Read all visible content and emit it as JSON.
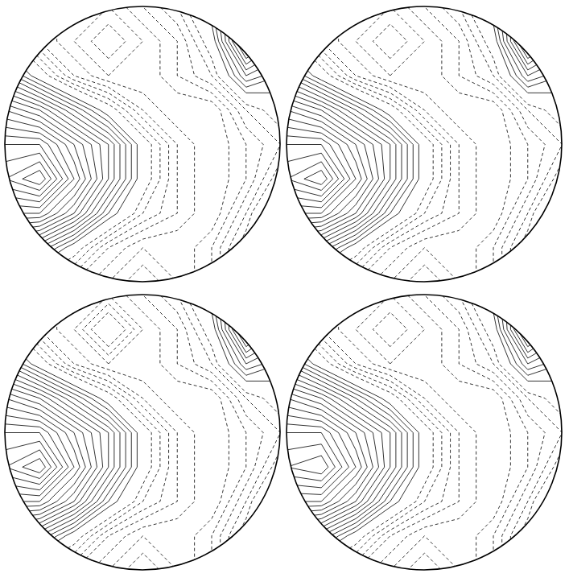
{
  "chart_data": [
    {
      "type": "contour",
      "tick_labels": false,
      "xlim": [
        -1,
        1
      ],
      "ylim": [
        -1,
        1
      ],
      "x": [
        -1,
        -0.75,
        -0.5,
        -0.25,
        0,
        0.25,
        0.5,
        0.75,
        1
      ],
      "y": [
        1,
        0.75,
        0.5,
        0.25,
        0,
        -0.25,
        -0.5,
        -0.75,
        -1
      ],
      "thresholds": [
        -4,
        -3.5,
        -3,
        -2.5,
        -2,
        -1.5,
        -1,
        -0.5,
        0.5,
        1,
        1.5,
        2,
        2.5,
        3,
        3.5,
        4,
        4.5,
        5,
        5.5,
        6,
        6.5,
        7,
        7.5,
        8,
        8.5
      ],
      "values": [
        [
          -1,
          -2,
          -3,
          -3,
          -2,
          -1,
          1,
          4,
          2
        ],
        [
          0,
          -2,
          -3,
          -4,
          -3,
          -2,
          0,
          5,
          3
        ],
        [
          2,
          0,
          -2,
          -3,
          -3,
          -2,
          -1,
          2,
          1
        ],
        [
          5,
          4,
          2,
          0,
          -2,
          -3,
          -3,
          -1,
          0
        ],
        [
          7,
          7,
          5,
          3,
          0,
          -2,
          -3,
          -2,
          -1
        ],
        [
          8,
          9,
          6,
          3,
          0,
          -2,
          -3,
          -2,
          0
        ],
        [
          6,
          6,
          4,
          1,
          -1,
          -2,
          -3,
          -1,
          2
        ],
        [
          3,
          2,
          0,
          -2,
          -3,
          -3,
          -2,
          0,
          3
        ],
        [
          0,
          -1,
          -2,
          -3,
          -4,
          -3,
          -2,
          0,
          2
        ]
      ]
    },
    {
      "type": "contour",
      "tick_labels": false,
      "xlim": [
        -1,
        1
      ],
      "ylim": [
        -1,
        1
      ],
      "x": [
        -1,
        -0.75,
        -0.5,
        -0.25,
        0,
        0.25,
        0.5,
        0.75,
        1
      ],
      "y": [
        1,
        0.75,
        0.5,
        0.25,
        0,
        -0.25,
        -0.5,
        -0.75,
        -1
      ],
      "thresholds": [
        -4,
        -3.5,
        -3,
        -2.5,
        -2,
        -1.5,
        -1,
        -0.5,
        0.5,
        1,
        1.5,
        2,
        2.5,
        3,
        3.5,
        4,
        4.5,
        5,
        5.5,
        6,
        6.5,
        7,
        7.5,
        8,
        8.5
      ],
      "values": [
        [
          -1,
          -2,
          -3,
          -3,
          -2,
          -1,
          1,
          4,
          2
        ],
        [
          0,
          -2,
          -3,
          -4,
          -3,
          -2,
          0,
          5,
          3
        ],
        [
          2,
          0,
          -2,
          -3,
          -3,
          -2,
          -1,
          2,
          1
        ],
        [
          5,
          4,
          2,
          0,
          -2,
          -3,
          -3,
          -1,
          0
        ],
        [
          7,
          7,
          5,
          3,
          0,
          -2,
          -3,
          -2,
          -1
        ],
        [
          8,
          9,
          6,
          3,
          0,
          -2,
          -3,
          -2,
          0
        ],
        [
          6,
          6,
          4,
          1,
          -1,
          -2,
          -3,
          -1,
          2
        ],
        [
          3,
          2,
          0,
          -2,
          -3,
          -3,
          -2,
          0,
          3
        ],
        [
          0,
          -1,
          -2,
          -3,
          -4,
          -3,
          -2,
          0,
          2
        ]
      ]
    },
    {
      "type": "contour",
      "tick_labels": false,
      "xlim": [
        -1,
        1
      ],
      "ylim": [
        -1,
        1
      ],
      "x": [
        -1,
        -0.75,
        -0.5,
        -0.25,
        0,
        0.25,
        0.5,
        0.75,
        1
      ],
      "y": [
        1,
        0.75,
        0.5,
        0.25,
        0,
        -0.25,
        -0.5,
        -0.75,
        -1
      ],
      "thresholds": [
        -4,
        -3.5,
        -3,
        -2.5,
        -2,
        -1.5,
        -1,
        -0.5,
        0.5,
        1,
        1.5,
        2,
        2.5,
        3,
        3.5,
        4,
        4.5,
        5,
        5.5,
        6,
        6.5,
        7,
        7.5,
        8,
        8.5
      ],
      "values": [
        [
          -1,
          -2,
          -3,
          -3,
          -2,
          -1,
          1,
          4,
          2
        ],
        [
          0,
          -2,
          -3,
          -5,
          -3,
          -2,
          0,
          5,
          3
        ],
        [
          2,
          0,
          -2,
          -3,
          -3,
          -2,
          -1,
          2,
          1
        ],
        [
          5,
          4,
          2,
          0,
          -2,
          -3,
          -3,
          -1,
          0
        ],
        [
          7,
          7,
          5,
          3,
          0,
          -2,
          -3,
          -2,
          -1
        ],
        [
          8,
          9,
          6,
          3,
          0,
          -2,
          -3,
          -2,
          0
        ],
        [
          6,
          6,
          4,
          1,
          -1,
          -2,
          -3,
          -1,
          2
        ],
        [
          3,
          2,
          0,
          -2,
          -3,
          -3,
          -2,
          0,
          3
        ],
        [
          0,
          -1,
          -2,
          -3,
          -4,
          -3,
          -2,
          0,
          2
        ]
      ]
    },
    {
      "type": "contour",
      "tick_labels": false,
      "xlim": [
        -1,
        1
      ],
      "ylim": [
        -1,
        1
      ],
      "x": [
        -1,
        -0.75,
        -0.5,
        -0.25,
        0,
        0.25,
        0.5,
        0.75,
        1
      ],
      "y": [
        1,
        0.75,
        0.5,
        0.25,
        0,
        -0.25,
        -0.5,
        -0.75,
        -1
      ],
      "thresholds": [
        -4,
        -3.5,
        -3,
        -2.5,
        -2,
        -1.5,
        -1,
        -0.5,
        0.5,
        1,
        1.5,
        2,
        2.5,
        3,
        3.5,
        4,
        4.5,
        5,
        5.5,
        6,
        6.5,
        7,
        7.5,
        8,
        8.5
      ],
      "values": [
        [
          -1,
          -2,
          -3,
          -3,
          -2,
          -1,
          1,
          4,
          2
        ],
        [
          0,
          -2,
          -3,
          -4,
          -3,
          -2,
          0,
          5,
          3
        ],
        [
          2,
          0,
          -2,
          -3,
          -3,
          -2,
          -1,
          2,
          1
        ],
        [
          5,
          4,
          2,
          0,
          -2,
          -3,
          -3,
          -1,
          0
        ],
        [
          7,
          7,
          5,
          3,
          0,
          -2,
          -3,
          -2,
          -1
        ],
        [
          8,
          8.5,
          6,
          3,
          0,
          -2,
          -3,
          -2,
          0
        ],
        [
          6,
          6,
          4,
          1,
          -1,
          -2,
          -3,
          -1,
          2
        ],
        [
          3,
          2,
          0,
          -2,
          -3,
          -3,
          -2,
          0,
          3
        ],
        [
          0,
          -1,
          -2,
          -3,
          -4,
          -3,
          -2,
          0,
          2
        ]
      ]
    }
  ]
}
